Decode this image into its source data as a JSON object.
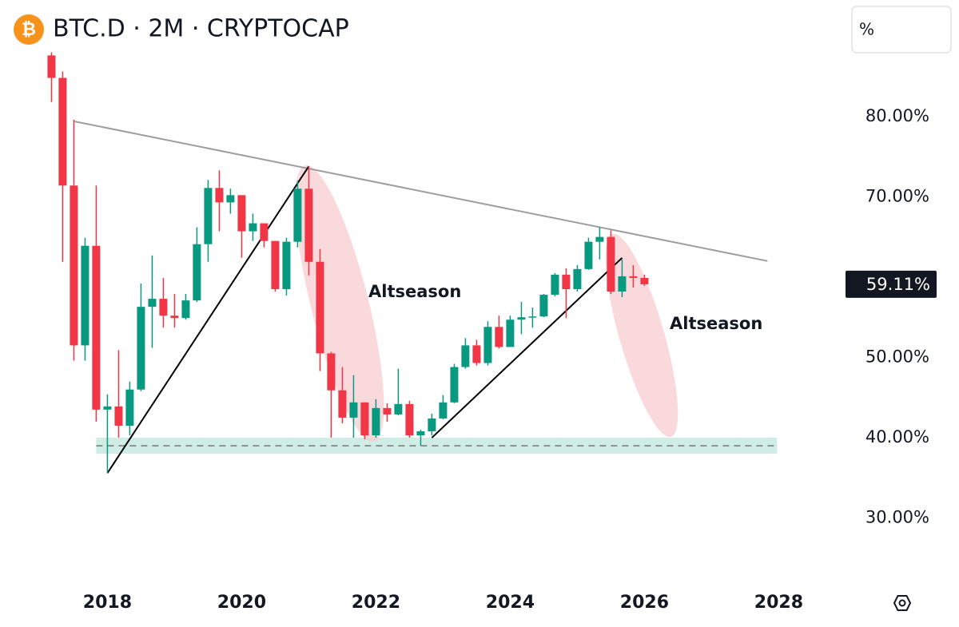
{
  "chart_data": {
    "type": "candlestick",
    "title": "BTC.D · 2M · CRYPTOCAP",
    "logo_symbol": "₿",
    "scale_button": "%",
    "up_color": "#089981",
    "down_color": "#f23645",
    "x": [
      2017.167,
      2017.333,
      2017.5,
      2017.667,
      2017.833,
      2018,
      2018.167,
      2018.333,
      2018.5,
      2018.667,
      2018.833,
      2019,
      2019.167,
      2019.333,
      2019.5,
      2019.667,
      2019.833,
      2020,
      2020.167,
      2020.333,
      2020.5,
      2020.667,
      2020.833,
      2021,
      2021.167,
      2021.333,
      2021.5,
      2021.667,
      2021.833,
      2022,
      2022.167,
      2022.333,
      2022.5,
      2022.667,
      2022.833,
      2023,
      2023.167,
      2023.333,
      2023.5,
      2023.667,
      2023.833,
      2024,
      2024.167,
      2024.333,
      2024.5,
      2024.667,
      2024.833,
      2025,
      2025.167,
      2025.333,
      2025.5,
      2025.667,
      2025.833,
      2026
    ],
    "open": [
      87.6,
      84.8,
      71.4,
      51.5,
      63.9,
      43.5,
      43.9,
      41.5,
      46.0,
      56.3,
      57.3,
      55.2,
      54.9,
      57.1,
      64.1,
      71.1,
      69.3,
      70.2,
      65.7,
      66.7,
      64.5,
      58.5,
      64.4,
      71.0,
      61.9,
      50.5,
      45.9,
      42.5,
      44.4,
      40.3,
      43.7,
      42.9,
      44.2,
      40.3,
      40.8,
      42.4,
      44.4,
      48.8,
      51.5,
      49.3,
      53.8,
      51.3,
      54.7,
      55.0,
      55.1,
      57.8,
      60.3,
      58.5,
      61.0,
      64.4,
      65.0,
      58.2,
      60.1,
      59.9
    ],
    "high": [
      88.0,
      85.6,
      79.6,
      64.9,
      71.4,
      45.4,
      50.9,
      47.0,
      59.2,
      62.7,
      59.9,
      57.9,
      57.9,
      66.2,
      72.1,
      73.3,
      71.0,
      70.2,
      67.9,
      66.7,
      64.5,
      64.9,
      72.0,
      73.8,
      63.5,
      50.7,
      48.8,
      47.8,
      44.4,
      44.8,
      44.3,
      48.6,
      44.6,
      41.0,
      43.0,
      45.3,
      49.2,
      52.4,
      52.2,
      54.5,
      55.2,
      55.2,
      56.9,
      56.2,
      57.9,
      60.5,
      61.1,
      61.5,
      64.9,
      66.2,
      65.8,
      62.2,
      61.5,
      60.3
    ],
    "low": [
      81.8,
      61.9,
      49.6,
      49.6,
      42.0,
      35.6,
      40.0,
      40.3,
      45.8,
      51.2,
      53.7,
      53.7,
      54.7,
      56.9,
      61.9,
      65.7,
      67.9,
      62.4,
      64.5,
      63.7,
      58.2,
      57.7,
      63.7,
      60.2,
      48.3,
      40.0,
      41.8,
      40.0,
      39.8,
      40.0,
      42.0,
      42.8,
      40.0,
      39.0,
      40.3,
      42.3,
      44.3,
      48.6,
      49.0,
      49.0,
      51.1,
      51.3,
      52.9,
      53.7,
      55.0,
      57.6,
      54.9,
      58.2,
      60.9,
      62.2,
      57.9,
      57.5,
      58.7,
      58.9
    ],
    "close": [
      84.8,
      71.4,
      51.5,
      63.9,
      43.5,
      43.9,
      41.5,
      46.0,
      56.3,
      57.3,
      55.2,
      54.9,
      57.1,
      64.1,
      71.1,
      69.3,
      70.2,
      65.7,
      66.7,
      64.5,
      58.5,
      64.4,
      71.0,
      61.9,
      50.5,
      45.9,
      42.5,
      44.4,
      40.3,
      43.7,
      42.9,
      44.2,
      40.3,
      40.8,
      42.4,
      44.4,
      48.8,
      51.5,
      49.3,
      53.8,
      51.3,
      54.7,
      55.0,
      55.1,
      57.8,
      60.3,
      58.5,
      61.0,
      64.4,
      65.0,
      58.2,
      60.1,
      59.9,
      59.11
    ],
    "last_price": {
      "value": 59.11,
      "label": "59.11%"
    },
    "xlim": [
      2016.4,
      2028.8
    ],
    "ylim": [
      22.9,
      94.5
    ],
    "xticks": [
      2018,
      2020,
      2022,
      2024,
      2026,
      2028
    ],
    "yticks": [
      {
        "value": 30,
        "label": "30.00%"
      },
      {
        "value": 40,
        "label": "40.00%"
      },
      {
        "value": 50,
        "label": "50.00%"
      },
      {
        "value": 70,
        "label": "70.00%"
      },
      {
        "value": 80,
        "label": "80.00%"
      }
    ],
    "grid": false,
    "lines": [
      {
        "x": [
          2017.5,
          2027.833
        ],
        "y": [
          79.4,
          62.0
        ],
        "color": "#9e9e9e"
      },
      {
        "x": [
          2018,
          2021
        ],
        "y": [
          35.6,
          73.8
        ],
        "color": "#000000"
      },
      {
        "x": [
          2022.833,
          2025.667
        ],
        "y": [
          40.0,
          62.4
        ],
        "color": "#000000"
      }
    ],
    "zone": {
      "x": [
        2017.833,
        2027.976
      ],
      "y": [
        38.0,
        40.0
      ],
      "color": "#bfe6dc"
    },
    "level": {
      "value": 39.0,
      "color": "#777777"
    },
    "annotations": [
      {
        "text": "Altseason"
      },
      {
        "text": "Altseason"
      }
    ]
  }
}
